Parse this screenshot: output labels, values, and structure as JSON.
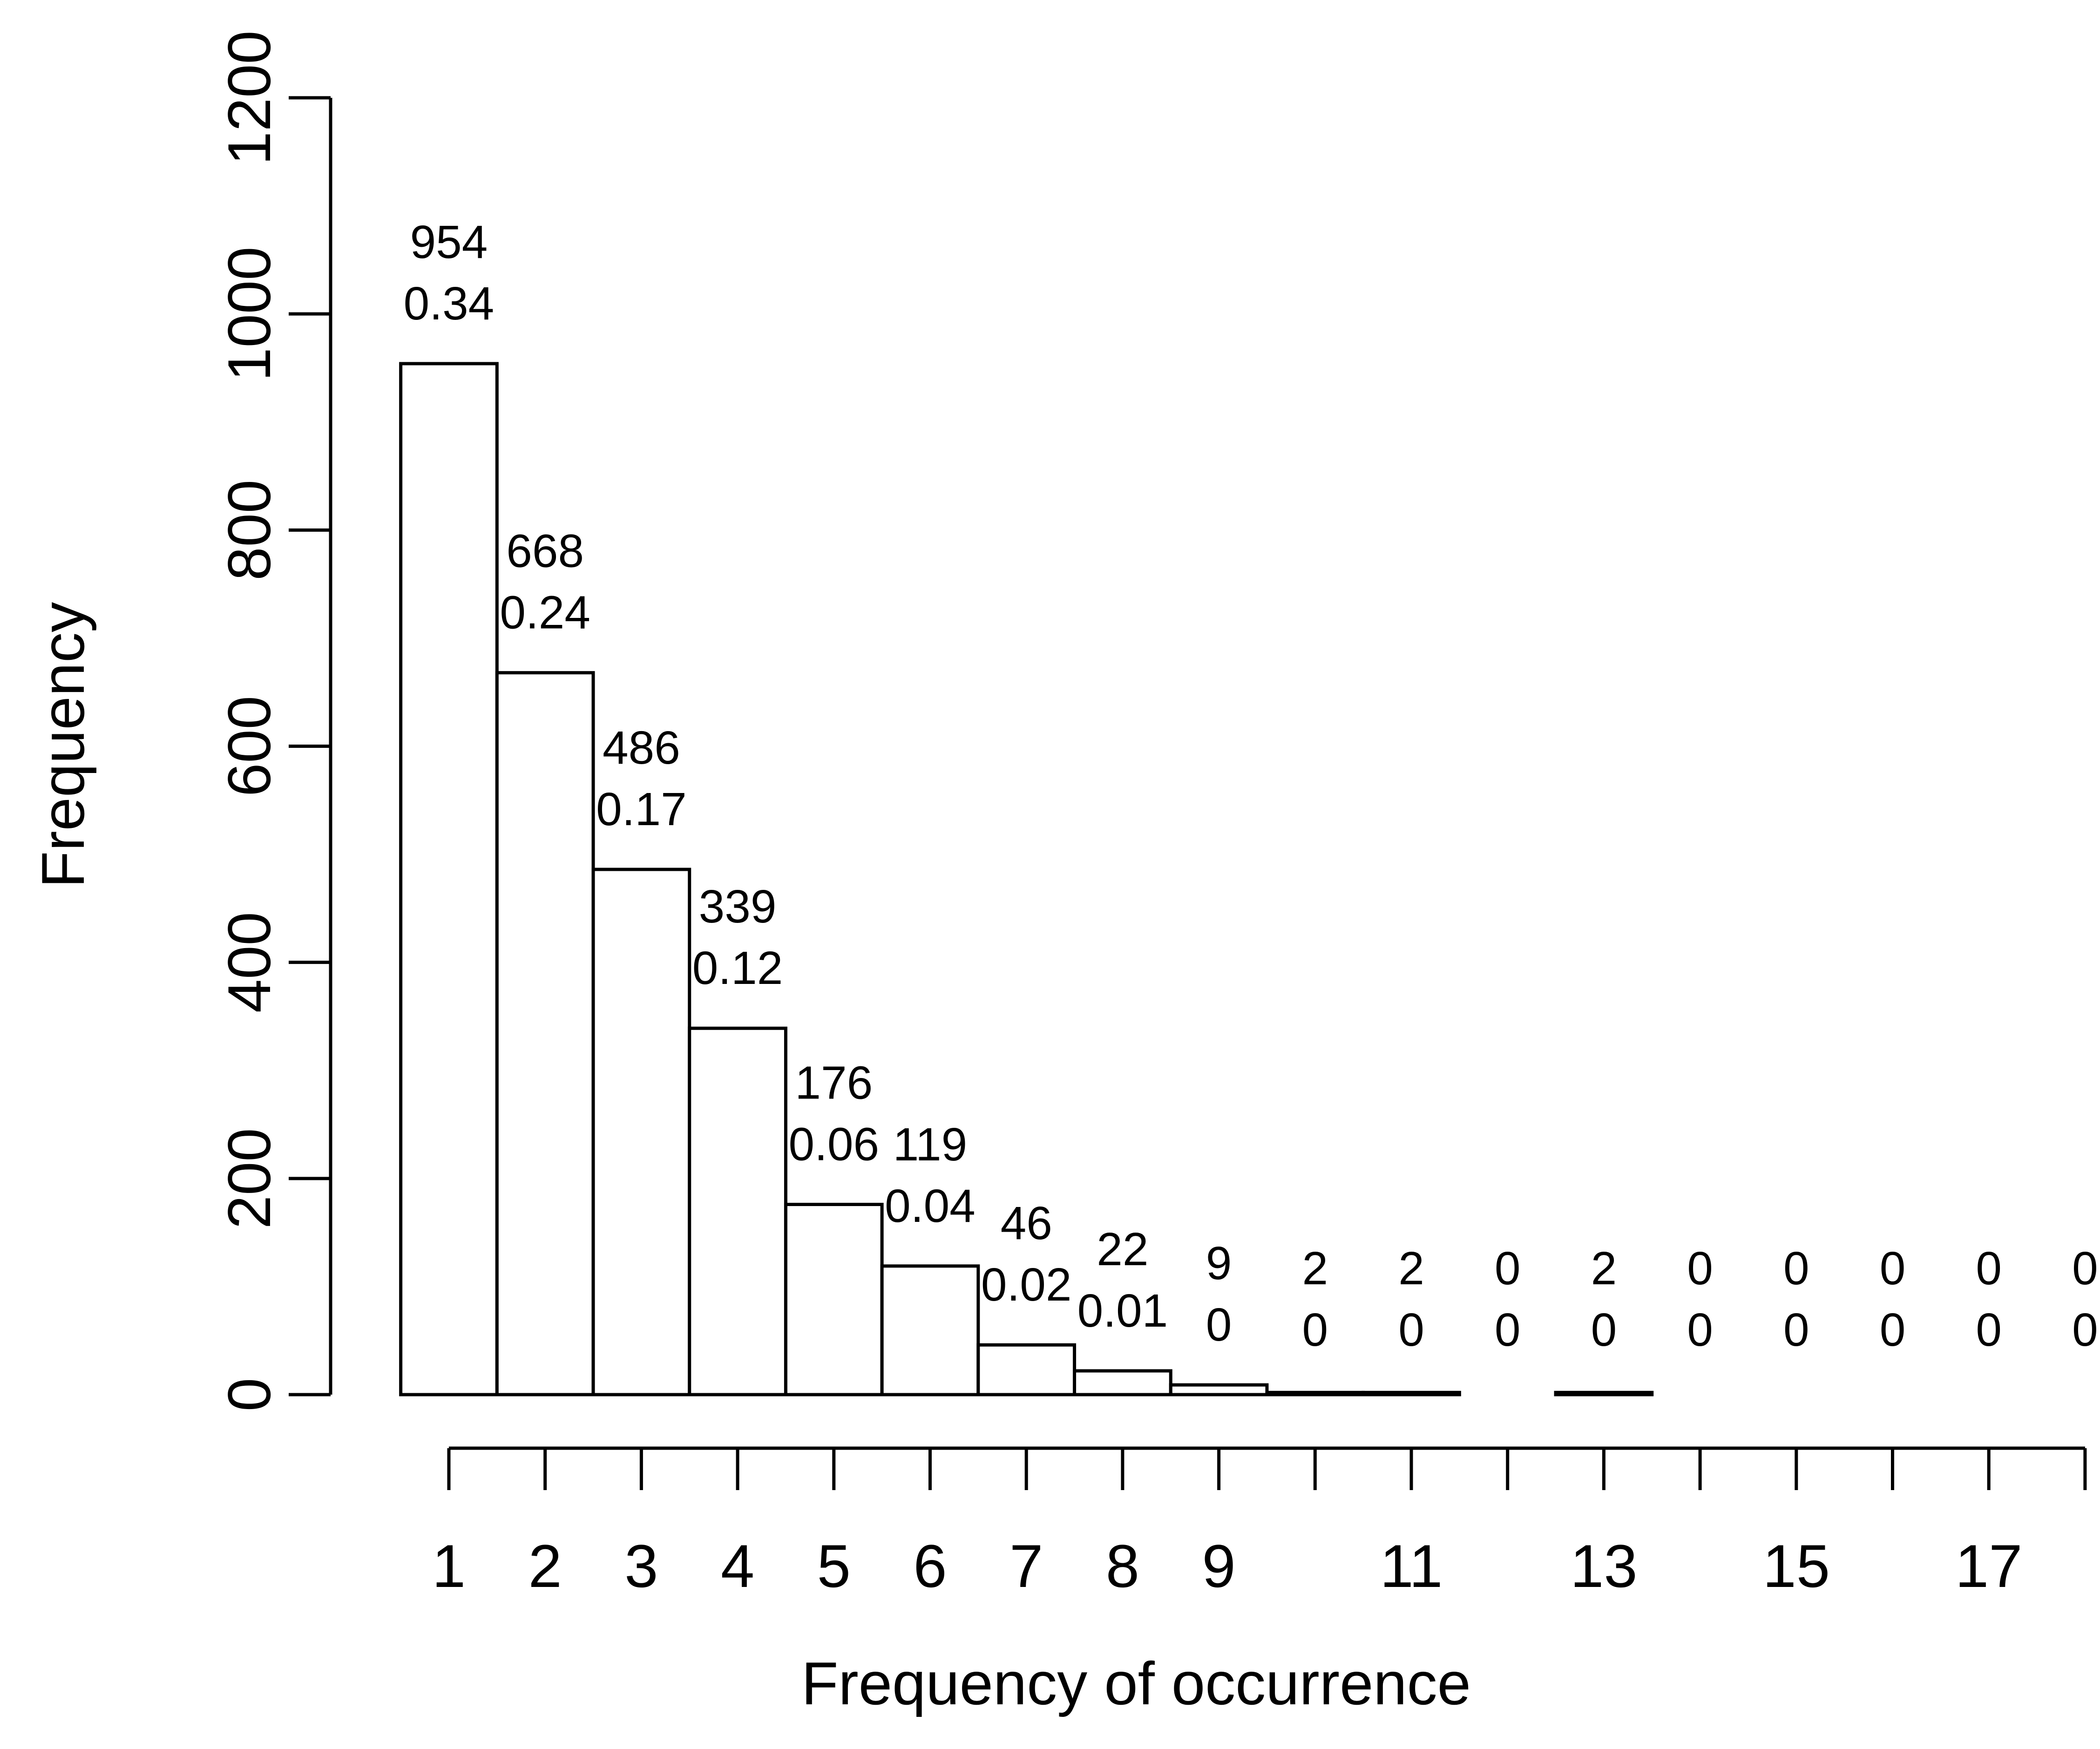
{
  "chart_data": {
    "type": "bar",
    "xlabel": "Frequency of occurrence",
    "ylabel": "Frequency",
    "ylim": [
      0,
      1200
    ],
    "y_ticks": [
      "0",
      "200",
      "400",
      "600",
      "800",
      "1000",
      "1200"
    ],
    "x_ticks": [
      "1",
      "2",
      "3",
      "4",
      "5",
      "6",
      "7",
      "8",
      "9",
      "10",
      "11",
      "12",
      "13",
      "14",
      "15",
      "16",
      "17",
      "18"
    ],
    "x_tick_labels": [
      "1",
      "2",
      "3",
      "4",
      "5",
      "6",
      "7",
      "8",
      "9",
      "",
      "11",
      "",
      "13",
      "",
      "15",
      "",
      "17",
      ""
    ],
    "categories": [
      "1",
      "2",
      "3",
      "4",
      "5",
      "6",
      "7",
      "8",
      "9",
      "10",
      "11",
      "12",
      "13",
      "14",
      "15",
      "16",
      "17",
      "18"
    ],
    "values": [
      954,
      668,
      486,
      339,
      176,
      119,
      46,
      22,
      9,
      2,
      2,
      0,
      2,
      0,
      0,
      0,
      0,
      0
    ],
    "count_labels": [
      "954",
      "668",
      "486",
      "339",
      "176",
      "119",
      "46",
      "22",
      "9",
      "2",
      "2",
      "0",
      "2",
      "0",
      "0",
      "0",
      "0",
      "0"
    ],
    "proportion_labels": [
      "0.34",
      "0.24",
      "0.17",
      "0.12",
      "0.06",
      "0.04",
      "0.02",
      "0.01",
      "0",
      "0",
      "0",
      "0",
      "0",
      "0",
      "0",
      "0",
      "0",
      "0"
    ],
    "grid": false
  }
}
